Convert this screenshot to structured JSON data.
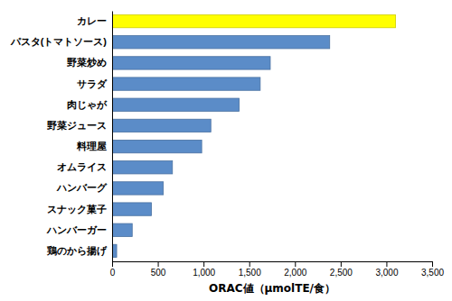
{
  "chart_data": {
    "type": "bar",
    "orientation": "horizontal",
    "categories": [
      "鶏のから揚げ",
      "ハンバーガー",
      "スナック菓子",
      "ハンバーグ",
      "オムライス",
      "料理屋",
      "野菜ジュース",
      "肉じゃが",
      "サラダ",
      "野菜炒め",
      "パスタ(トマトソース)",
      "カレー"
    ],
    "values": [
      50,
      220,
      430,
      560,
      660,
      980,
      1080,
      1390,
      1620,
      1730,
      2380,
      3100
    ],
    "colors": [
      "#5b8cc8",
      "#5b8cc8",
      "#5b8cc8",
      "#5b8cc8",
      "#5b8cc8",
      "#5b8cc8",
      "#5b8cc8",
      "#5b8cc8",
      "#5b8cc8",
      "#5b8cc8",
      "#5b8cc8",
      "#ffff00"
    ],
    "xlabel": "ORAC値（μmolTE/食）",
    "xlim": [
      0,
      3500
    ],
    "xticks": [
      0,
      500,
      {
        "value": 1000,
        "label": "1,000"
      },
      {
        "value": 1500,
        "label": "1,500"
      },
      {
        "value": 2000,
        "label": "2,000"
      },
      {
        "value": 2500,
        "label": "2,500"
      },
      {
        "value": 3000,
        "label": "3,000"
      },
      {
        "value": 3500,
        "label": "3,500"
      }
    ],
    "grid": false
  }
}
